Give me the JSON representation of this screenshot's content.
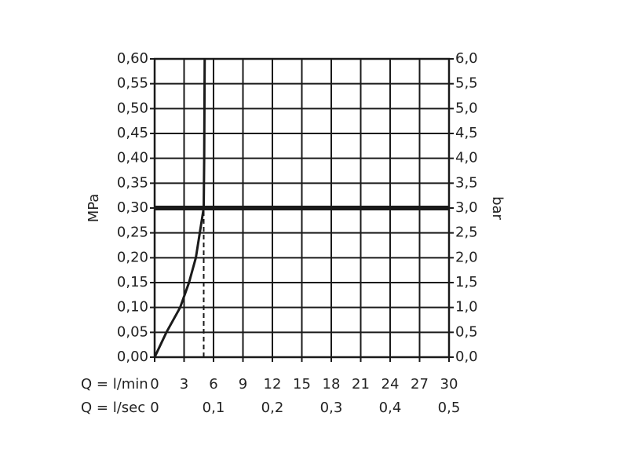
{
  "chart_data": {
    "type": "line",
    "xlabel": "Q = l/min",
    "x2label": "Q = l/sec",
    "ylabel": "MPa",
    "y2label": "bar",
    "xlim": [
      0,
      30
    ],
    "xticks": [
      0,
      3,
      6,
      9,
      12,
      15,
      18,
      21,
      24,
      27,
      30
    ],
    "x2lim": [
      0,
      0.5
    ],
    "x2ticks": [
      0,
      {
        "value": 0.1,
        "label": "0,1"
      },
      {
        "value": 0.2,
        "label": "0,2"
      },
      {
        "value": 0.3,
        "label": "0,3"
      },
      {
        "value": 0.4,
        "label": "0,4"
      },
      {
        "value": 0.5,
        "label": "0,5"
      }
    ],
    "ylim": [
      0,
      0.6
    ],
    "yticks": [
      {
        "value": 0,
        "label": "0,00"
      },
      {
        "value": 0.05,
        "label": "0,05"
      },
      {
        "value": 0.1,
        "label": "0,10"
      },
      {
        "value": 0.15,
        "label": "0,15"
      },
      {
        "value": 0.2,
        "label": "0,20"
      },
      {
        "value": 0.25,
        "label": "0,25"
      },
      {
        "value": 0.3,
        "label": "0,30"
      },
      {
        "value": 0.35,
        "label": "0,35"
      },
      {
        "value": 0.4,
        "label": "0,40"
      },
      {
        "value": 0.45,
        "label": "0,45"
      },
      {
        "value": 0.5,
        "label": "0,50"
      },
      {
        "value": 0.55,
        "label": "0,55"
      },
      {
        "value": 0.6,
        "label": "0,60"
      }
    ],
    "y2lim": [
      0,
      6
    ],
    "y2ticks": [
      {
        "value": 0,
        "label": "0,0"
      },
      {
        "value": 0.5,
        "label": "0,5"
      },
      {
        "value": 1,
        "label": "1,0"
      },
      {
        "value": 1.5,
        "label": "1,5"
      },
      {
        "value": 2,
        "label": "2,0"
      },
      {
        "value": 2.5,
        "label": "2,5"
      },
      {
        "value": 3,
        "label": "3,0"
      },
      {
        "value": 3.5,
        "label": "3,5"
      },
      {
        "value": 4,
        "label": "4,0"
      },
      {
        "value": 4.5,
        "label": "4,5"
      },
      {
        "value": 5,
        "label": "5,0"
      },
      {
        "value": 5.5,
        "label": "5,5"
      },
      {
        "value": 6,
        "label": "6,0"
      }
    ],
    "grid": true,
    "color": "#1a1a1a",
    "hlines": [
      0.3
    ],
    "vlines": [
      5.0
    ],
    "series": [
      {
        "color": "#1a1a1a",
        "x": [
          0,
          1.2,
          2.6,
          3.5,
          4.2,
          4.6,
          5.0,
          5.05,
          5.1
        ],
        "values": [
          0,
          0.05,
          0.1,
          0.15,
          0.2,
          0.25,
          0.3,
          0.4,
          0.6
        ]
      }
    ]
  }
}
